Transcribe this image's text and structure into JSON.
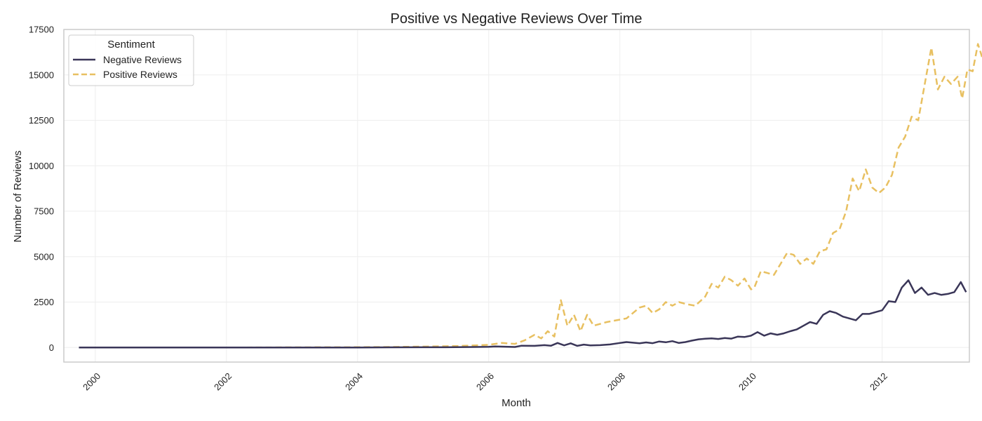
{
  "colors": {
    "negative": "#3a3658",
    "positive": "#e8c061",
    "grid": "#eeeeee",
    "frame": "#cccccc"
  },
  "chart_data": {
    "type": "line",
    "title": "Positive vs Negative Reviews Over Time",
    "xlabel": "Month",
    "ylabel": "Number of Reviews",
    "xlim": [
      1999.52,
      2013.33
    ],
    "ylim": [
      -800,
      17500
    ],
    "x_ticks": [
      "2000",
      "2002",
      "2004",
      "2006",
      "2008",
      "2010",
      "2012"
    ],
    "y_ticks": [
      "0",
      "2500",
      "5000",
      "7500",
      "10000",
      "12500",
      "15000",
      "17500"
    ],
    "grid": true,
    "legend": {
      "title": "Sentiment",
      "placement": "upper-left",
      "entries": [
        "Negative Reviews",
        "Positive Reviews"
      ]
    },
    "series": [
      {
        "name": "Negative Reviews",
        "style": "solid",
        "points": [
          [
            1999.75,
            0
          ],
          [
            2000,
            0
          ],
          [
            2001,
            0
          ],
          [
            2002,
            0
          ],
          [
            2003,
            0
          ],
          [
            2004,
            0
          ],
          [
            2004.5,
            10
          ],
          [
            2005,
            15
          ],
          [
            2005.5,
            20
          ],
          [
            2005.8,
            30
          ],
          [
            2006,
            40
          ],
          [
            2006.1,
            60
          ],
          [
            2006.4,
            30
          ],
          [
            2006.5,
            100
          ],
          [
            2006.7,
            90
          ],
          [
            2006.85,
            130
          ],
          [
            2006.95,
            100
          ],
          [
            2007.05,
            250
          ],
          [
            2007.15,
            120
          ],
          [
            2007.25,
            230
          ],
          [
            2007.35,
            90
          ],
          [
            2007.45,
            160
          ],
          [
            2007.55,
            120
          ],
          [
            2007.7,
            130
          ],
          [
            2007.85,
            170
          ],
          [
            2008.0,
            250
          ],
          [
            2008.1,
            300
          ],
          [
            2008.3,
            230
          ],
          [
            2008.4,
            280
          ],
          [
            2008.5,
            240
          ],
          [
            2008.6,
            330
          ],
          [
            2008.7,
            290
          ],
          [
            2008.8,
            350
          ],
          [
            2008.9,
            250
          ],
          [
            2009.0,
            300
          ],
          [
            2009.1,
            380
          ],
          [
            2009.2,
            450
          ],
          [
            2009.3,
            480
          ],
          [
            2009.4,
            500
          ],
          [
            2009.5,
            470
          ],
          [
            2009.6,
            520
          ],
          [
            2009.7,
            490
          ],
          [
            2009.8,
            600
          ],
          [
            2009.9,
            580
          ],
          [
            2010.0,
            650
          ],
          [
            2010.1,
            850
          ],
          [
            2010.2,
            650
          ],
          [
            2010.3,
            780
          ],
          [
            2010.4,
            700
          ],
          [
            2010.5,
            780
          ],
          [
            2010.6,
            900
          ],
          [
            2010.7,
            1000
          ],
          [
            2010.8,
            1200
          ],
          [
            2010.9,
            1400
          ],
          [
            2011.0,
            1300
          ],
          [
            2011.1,
            1800
          ],
          [
            2011.2,
            2000
          ],
          [
            2011.3,
            1900
          ],
          [
            2011.4,
            1700
          ],
          [
            2011.5,
            1600
          ],
          [
            2011.6,
            1500
          ],
          [
            2011.7,
            1850
          ],
          [
            2011.8,
            1850
          ],
          [
            2011.9,
            1950
          ],
          [
            2012.0,
            2050
          ],
          [
            2012.1,
            2550
          ],
          [
            2012.2,
            2500
          ],
          [
            2012.3,
            3300
          ],
          [
            2012.4,
            3700
          ],
          [
            2012.5,
            3000
          ],
          [
            2012.6,
            3300
          ],
          [
            2012.7,
            2900
          ],
          [
            2012.8,
            3000
          ],
          [
            2012.9,
            2900
          ],
          [
            2013.0,
            2950
          ],
          [
            2013.1,
            3050
          ],
          [
            2013.2,
            3600
          ],
          [
            2013.28,
            3050
          ]
        ]
      },
      {
        "name": "Positive Reviews",
        "style": "dashed",
        "points": [
          [
            1999.75,
            0
          ],
          [
            2000,
            0
          ],
          [
            2001,
            0
          ],
          [
            2002,
            0
          ],
          [
            2003,
            10
          ],
          [
            2004,
            20
          ],
          [
            2004.5,
            30
          ],
          [
            2005,
            50
          ],
          [
            2005.5,
            80
          ],
          [
            2005.8,
            120
          ],
          [
            2006.0,
            150
          ],
          [
            2006.2,
            250
          ],
          [
            2006.4,
            200
          ],
          [
            2006.55,
            400
          ],
          [
            2006.7,
            700
          ],
          [
            2006.8,
            500
          ],
          [
            2006.9,
            900
          ],
          [
            2007.0,
            600
          ],
          [
            2007.1,
            2600
          ],
          [
            2007.2,
            1200
          ],
          [
            2007.3,
            1800
          ],
          [
            2007.4,
            900
          ],
          [
            2007.5,
            1800
          ],
          [
            2007.6,
            1200
          ],
          [
            2007.8,
            1400
          ],
          [
            2007.95,
            1500
          ],
          [
            2008.1,
            1600
          ],
          [
            2008.3,
            2200
          ],
          [
            2008.4,
            2300
          ],
          [
            2008.5,
            1900
          ],
          [
            2008.6,
            2100
          ],
          [
            2008.7,
            2500
          ],
          [
            2008.8,
            2300
          ],
          [
            2008.9,
            2500
          ],
          [
            2009.0,
            2400
          ],
          [
            2009.15,
            2300
          ],
          [
            2009.3,
            2800
          ],
          [
            2009.4,
            3500
          ],
          [
            2009.5,
            3300
          ],
          [
            2009.6,
            3900
          ],
          [
            2009.7,
            3700
          ],
          [
            2009.8,
            3400
          ],
          [
            2009.9,
            3800
          ],
          [
            2010.0,
            3200
          ],
          [
            2010.05,
            3300
          ],
          [
            2010.15,
            4200
          ],
          [
            2010.25,
            4100
          ],
          [
            2010.35,
            4000
          ],
          [
            2010.45,
            4600
          ],
          [
            2010.55,
            5200
          ],
          [
            2010.65,
            5100
          ],
          [
            2010.75,
            4600
          ],
          [
            2010.85,
            4900
          ],
          [
            2010.95,
            4600
          ],
          [
            2011.05,
            5300
          ],
          [
            2011.15,
            5400
          ],
          [
            2011.25,
            6300
          ],
          [
            2011.35,
            6500
          ],
          [
            2011.45,
            7500
          ],
          [
            2011.55,
            9300
          ],
          [
            2011.65,
            8600
          ],
          [
            2011.75,
            9800
          ],
          [
            2011.85,
            8800
          ],
          [
            2011.95,
            8500
          ],
          [
            2012.05,
            8800
          ],
          [
            2012.15,
            9500
          ],
          [
            2012.25,
            11000
          ],
          [
            2012.35,
            11600
          ],
          [
            2012.45,
            12700
          ],
          [
            2012.55,
            12500
          ],
          [
            2012.65,
            14500
          ],
          [
            2012.75,
            16500
          ],
          [
            2012.85,
            14200
          ],
          [
            2012.95,
            14900
          ],
          [
            2013.05,
            14500
          ],
          [
            2013.15,
            14900
          ],
          [
            2013.22,
            13700
          ],
          [
            2013.3,
            15300
          ],
          [
            2013.38,
            15200
          ],
          [
            2013.46,
            16700
          ],
          [
            2013.54,
            15800
          ]
        ]
      }
    ]
  }
}
